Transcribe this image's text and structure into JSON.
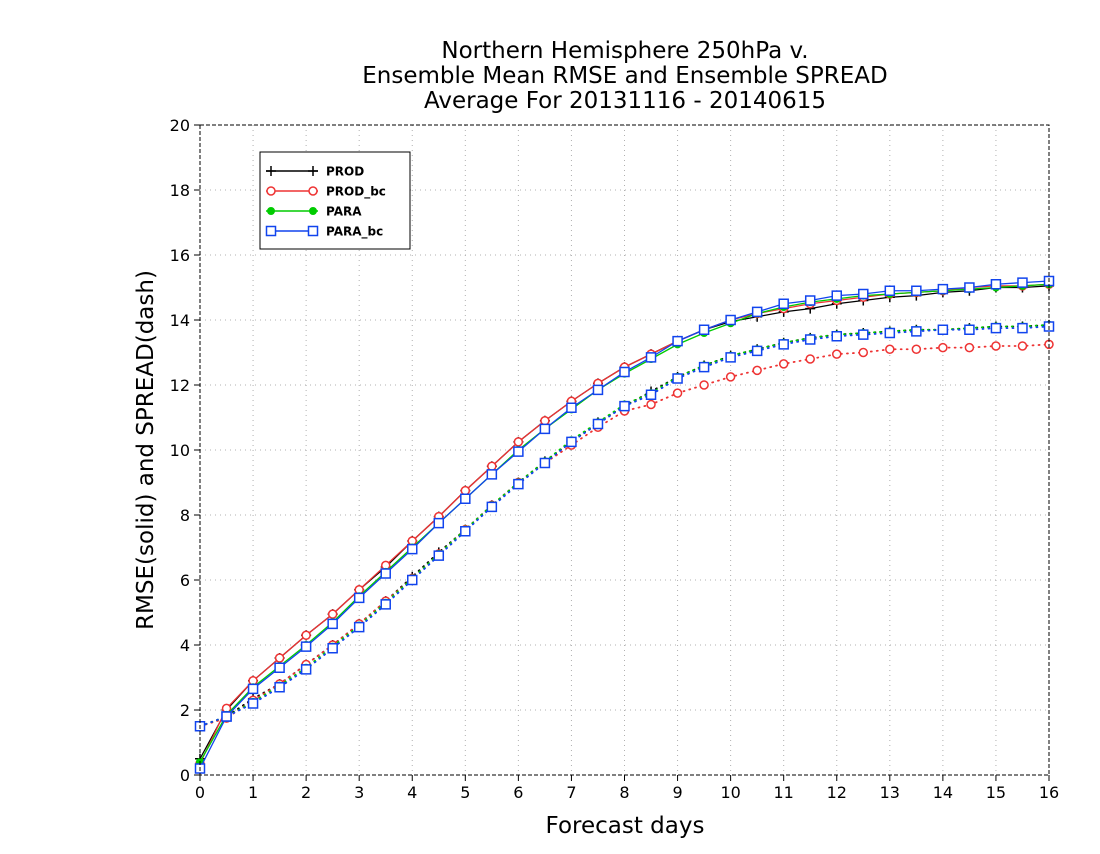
{
  "chart_data": {
    "type": "line",
    "title_lines": [
      "Northern Hemisphere 250hPa v.",
      "Ensemble Mean RMSE and Ensemble SPREAD",
      "Average For 20131116 - 20140615"
    ],
    "xlabel": "Forecast days",
    "ylabel": "RMSE(solid) and SPREAD(dash)",
    "xlim": [
      0,
      16
    ],
    "ylim": [
      0,
      20
    ],
    "x_ticks": [
      0,
      1,
      2,
      3,
      4,
      5,
      6,
      7,
      8,
      9,
      10,
      11,
      12,
      13,
      14,
      15,
      16
    ],
    "y_ticks": [
      0,
      2,
      4,
      6,
      8,
      10,
      12,
      14,
      16,
      18,
      20
    ],
    "grid": true,
    "legend_position": "top-left",
    "x": [
      0,
      0.5,
      1,
      1.5,
      2,
      2.5,
      3,
      3.5,
      4,
      4.5,
      5,
      5.5,
      6,
      6.5,
      7,
      7.5,
      8,
      8.5,
      9,
      9.5,
      10,
      10.5,
      11,
      11.5,
      12,
      12.5,
      13,
      13.5,
      14,
      14.5,
      15,
      15.5,
      16
    ],
    "series": [
      {
        "name": "PROD",
        "color": "#000000",
        "marker": "plus",
        "rmse": [
          0.5,
          2.0,
          2.9,
          3.6,
          4.3,
          4.95,
          5.7,
          6.4,
          7.2,
          7.95,
          8.75,
          9.5,
          10.25,
          10.9,
          11.5,
          12.05,
          12.55,
          12.95,
          13.35,
          13.7,
          13.95,
          14.1,
          14.25,
          14.35,
          14.5,
          14.6,
          14.7,
          14.75,
          14.85,
          14.9,
          15.0,
          15.0,
          15.05
        ],
        "spread": [
          1.5,
          1.8,
          2.35,
          2.8,
          3.4,
          4.0,
          4.65,
          5.35,
          6.1,
          6.85,
          7.55,
          8.3,
          9.0,
          9.65,
          10.25,
          10.85,
          11.35,
          11.8,
          12.25,
          12.6,
          12.9,
          13.1,
          13.3,
          13.45,
          13.55,
          13.6,
          13.65,
          13.7,
          13.7,
          13.75,
          13.8,
          13.8,
          13.85
        ]
      },
      {
        "name": "PROD_bc",
        "color": "#ee3333",
        "marker": "circle",
        "rmse": [
          0.35,
          2.05,
          2.9,
          3.6,
          4.3,
          4.95,
          5.7,
          6.45,
          7.2,
          7.95,
          8.75,
          9.5,
          10.25,
          10.9,
          11.5,
          12.05,
          12.55,
          12.95,
          13.35,
          13.7,
          14.0,
          14.2,
          14.35,
          14.5,
          14.6,
          14.7,
          14.8,
          14.85,
          14.9,
          15.0,
          15.05,
          15.05,
          15.1
        ],
        "spread": [
          1.5,
          1.75,
          2.3,
          2.8,
          3.4,
          4.0,
          4.65,
          5.35,
          6.05,
          6.8,
          7.55,
          8.3,
          9.0,
          9.6,
          10.15,
          10.7,
          11.2,
          11.4,
          11.75,
          12.0,
          12.25,
          12.45,
          12.65,
          12.8,
          12.95,
          13.0,
          13.1,
          13.1,
          13.15,
          13.15,
          13.2,
          13.2,
          13.25
        ]
      },
      {
        "name": "PARA",
        "color": "#00cc00",
        "marker": "dot",
        "rmse": [
          0.4,
          1.85,
          2.7,
          3.35,
          4.0,
          4.7,
          5.5,
          6.25,
          7.0,
          7.75,
          8.5,
          9.25,
          10.0,
          10.65,
          11.25,
          11.85,
          12.35,
          12.8,
          13.25,
          13.6,
          13.9,
          14.2,
          14.4,
          14.55,
          14.65,
          14.75,
          14.8,
          14.85,
          14.9,
          14.95,
          15.0,
          15.05,
          15.1
        ],
        "spread": [
          1.5,
          1.8,
          2.25,
          2.75,
          3.3,
          3.95,
          4.6,
          5.3,
          6.05,
          6.8,
          7.55,
          8.3,
          9.0,
          9.65,
          10.3,
          10.85,
          11.4,
          11.75,
          12.25,
          12.6,
          12.9,
          13.1,
          13.3,
          13.45,
          13.55,
          13.6,
          13.65,
          13.7,
          13.7,
          13.75,
          13.8,
          13.8,
          13.85
        ]
      },
      {
        "name": "PARA_bc",
        "color": "#1144ee",
        "marker": "square",
        "rmse": [
          0.2,
          1.8,
          2.65,
          3.3,
          3.95,
          4.65,
          5.45,
          6.2,
          6.95,
          7.75,
          8.5,
          9.25,
          9.95,
          10.65,
          11.3,
          11.85,
          12.4,
          12.85,
          13.35,
          13.7,
          14.0,
          14.25,
          14.5,
          14.6,
          14.75,
          14.8,
          14.9,
          14.9,
          14.95,
          15.0,
          15.1,
          15.15,
          15.2
        ],
        "spread": [
          1.5,
          1.8,
          2.2,
          2.7,
          3.25,
          3.9,
          4.55,
          5.25,
          6.0,
          6.75,
          7.5,
          8.25,
          8.95,
          9.6,
          10.25,
          10.8,
          11.35,
          11.7,
          12.2,
          12.55,
          12.85,
          13.05,
          13.25,
          13.4,
          13.5,
          13.55,
          13.6,
          13.65,
          13.7,
          13.7,
          13.75,
          13.75,
          13.8
        ]
      }
    ]
  }
}
